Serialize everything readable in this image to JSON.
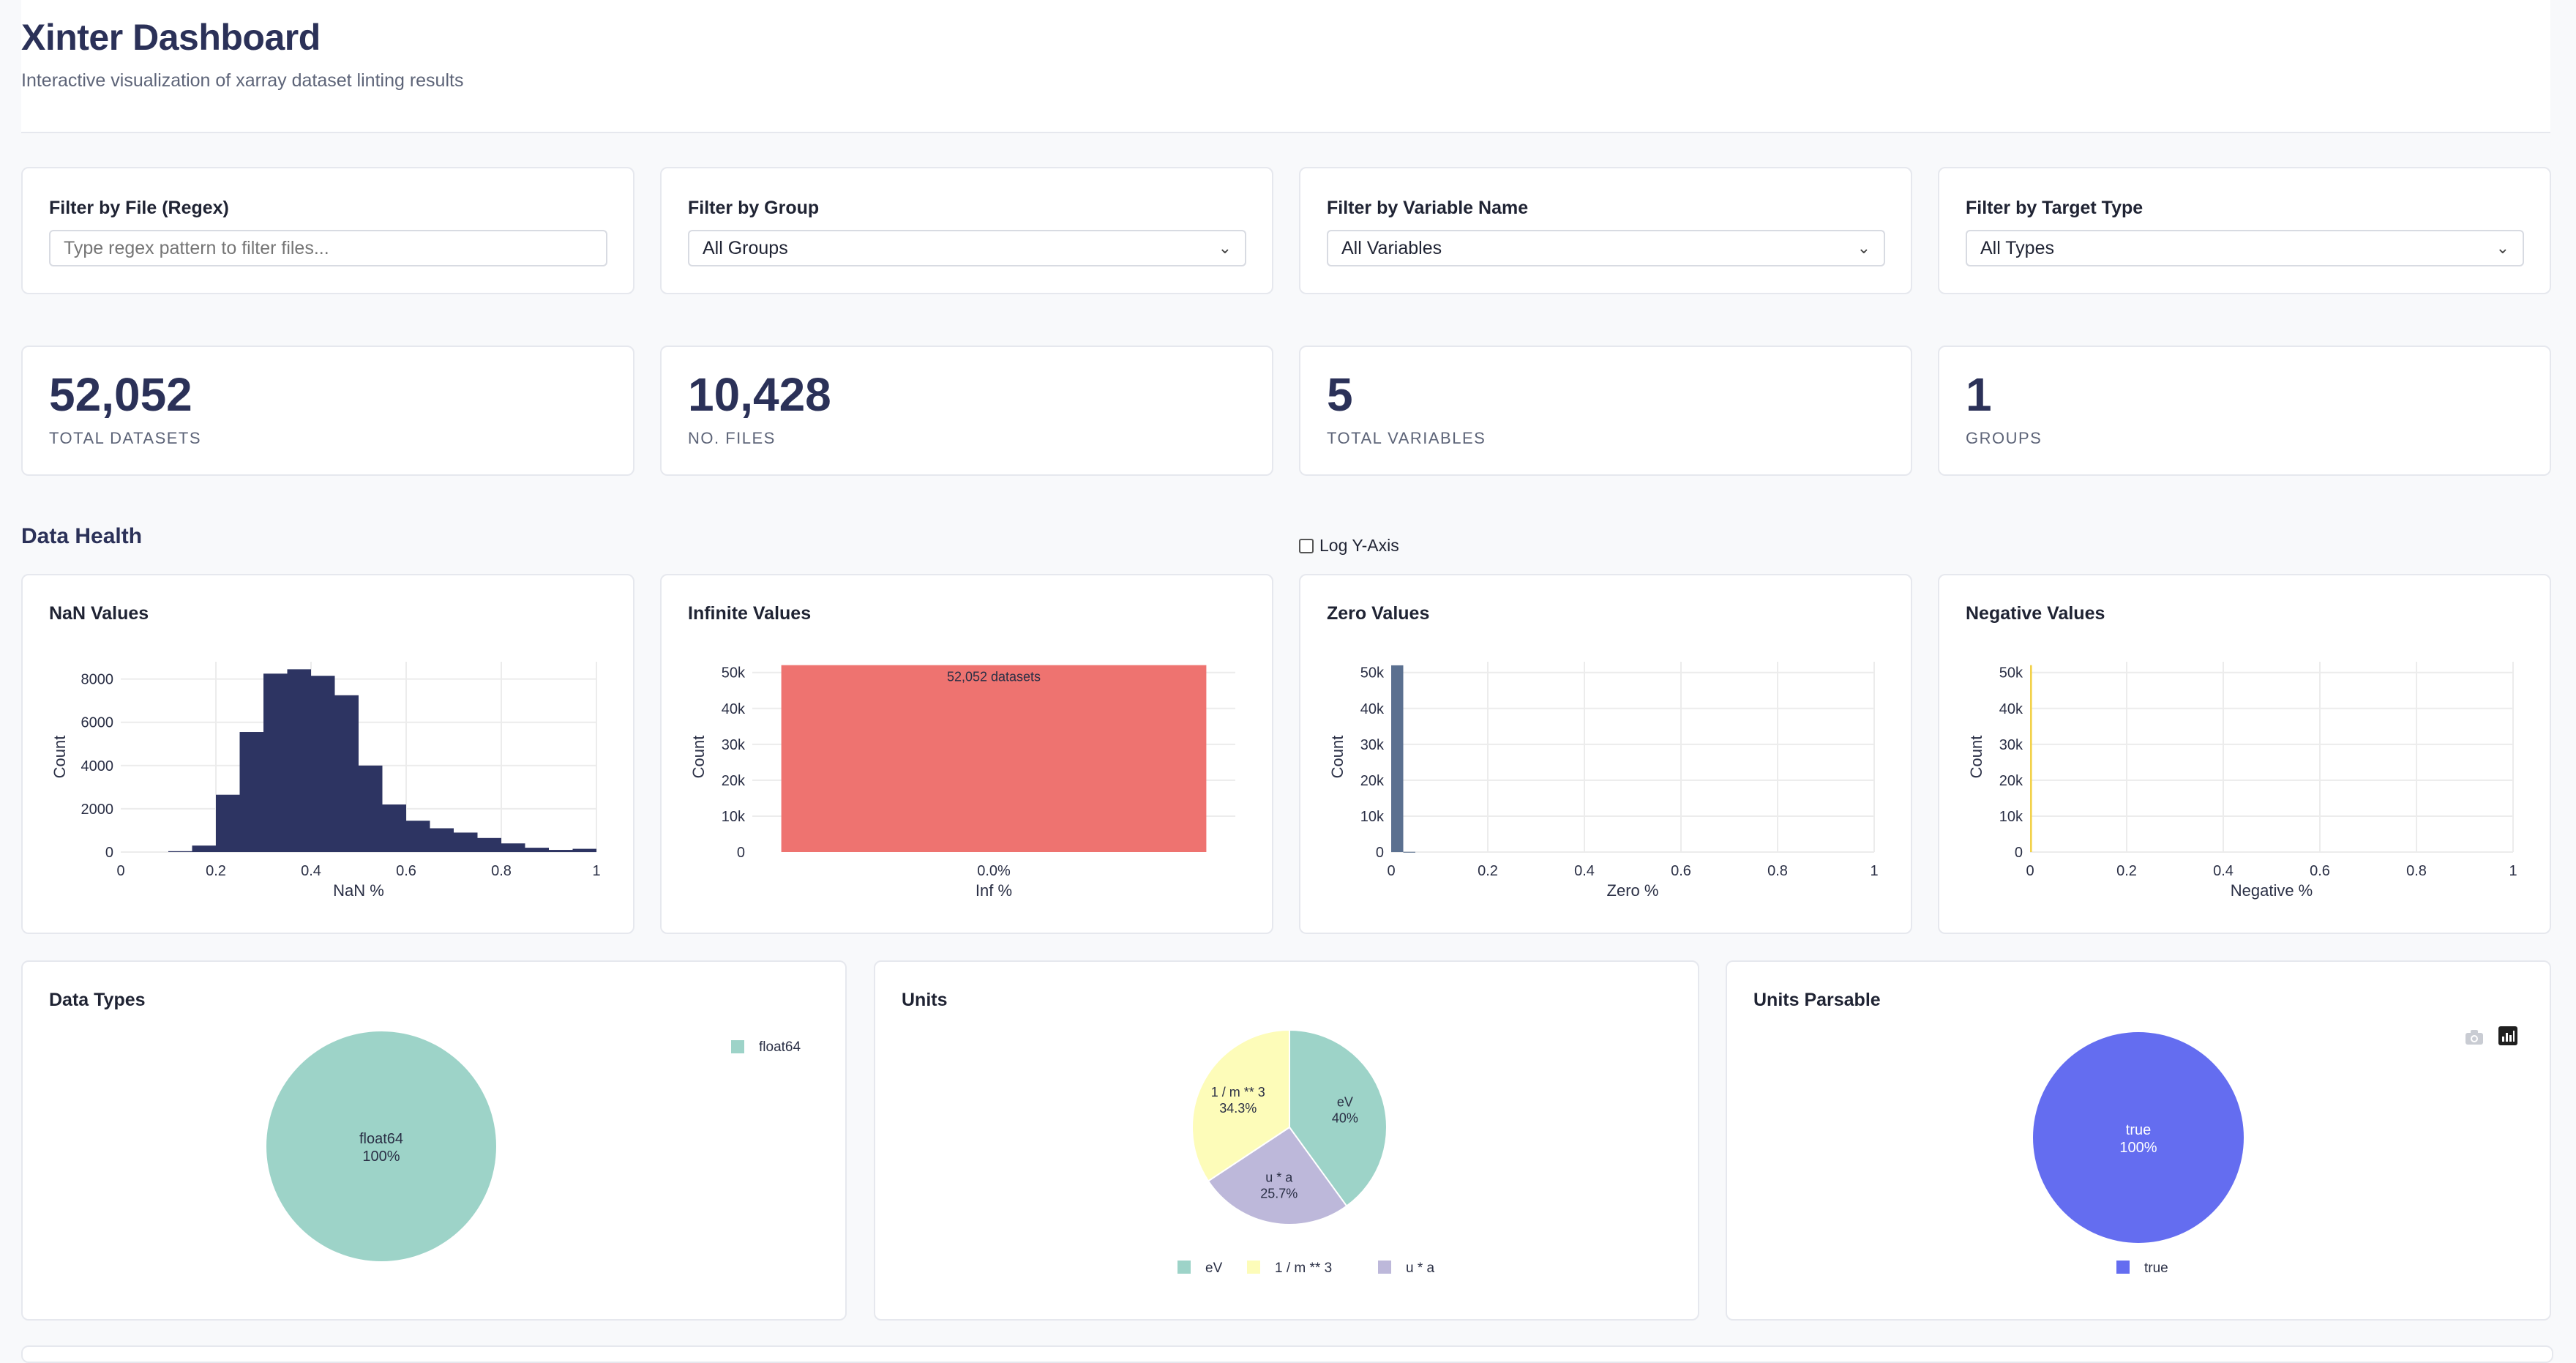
{
  "header": {
    "title": "Xinter Dashboard",
    "subtitle": "Interactive visualization of xarray dataset linting results"
  },
  "filters": {
    "file": {
      "label": "Filter by File (Regex)",
      "placeholder": "Type regex pattern to filter files..."
    },
    "group": {
      "label": "Filter by Group",
      "value": "All Groups"
    },
    "variable": {
      "label": "Filter by Variable Name",
      "value": "All Variables"
    },
    "target": {
      "label": "Filter by Target Type",
      "value": "All Types"
    }
  },
  "stats": [
    {
      "value": "52,052",
      "label": "TOTAL DATASETS"
    },
    {
      "value": "10,428",
      "label": "NO. FILES"
    },
    {
      "value": "5",
      "label": "TOTAL VARIABLES"
    },
    {
      "value": "1",
      "label": "GROUPS"
    }
  ],
  "data_health": {
    "title": "Data Health",
    "log_y_label": "Log Y-Axis"
  },
  "colors": {
    "nan_bar": "#2d3462",
    "inf_bar": "#ee7370",
    "zero_bar": "#5b7090",
    "neg_bar": "#f2d14a",
    "float64": "#9dd3c8",
    "eV": "#9dd3c8",
    "per_m3": "#fdfcb9",
    "ua": "#bdb8da",
    "true": "#646df0"
  },
  "chart_data": [
    {
      "id": "nan",
      "type": "bar",
      "title": "NaN Values",
      "xlabel": "NaN %",
      "ylabel": "Count",
      "xlim": [
        0,
        1
      ],
      "ylim": [
        0,
        8800
      ],
      "xticks": [
        "0",
        "0.2",
        "0.4",
        "0.6",
        "0.8",
        "1"
      ],
      "yticks": [
        "0",
        "2000",
        "4000",
        "6000",
        "8000"
      ],
      "bin_width": 0.05,
      "bin_starts": [
        0.1,
        0.15,
        0.2,
        0.25,
        0.3,
        0.35,
        0.4,
        0.45,
        0.5,
        0.55,
        0.6,
        0.65,
        0.7,
        0.75,
        0.8,
        0.85,
        0.9,
        0.95
      ],
      "values": [
        40,
        300,
        2650,
        5550,
        8250,
        8450,
        8150,
        7250,
        4000,
        2200,
        1450,
        1100,
        900,
        650,
        400,
        200,
        100,
        150
      ]
    },
    {
      "id": "inf",
      "type": "bar",
      "title": "Infinite Values",
      "xlabel": "Inf %",
      "ylabel": "Count",
      "ylim": [
        0,
        53000
      ],
      "categories": [
        "0.0%"
      ],
      "values": [
        52052
      ],
      "yticks": [
        "0",
        "10k",
        "20k",
        "30k",
        "40k",
        "50k"
      ],
      "data_label": "52,052 datasets"
    },
    {
      "id": "zero",
      "type": "bar",
      "title": "Zero Values",
      "xlabel": "Zero %",
      "ylabel": "Count",
      "xlim": [
        0,
        1
      ],
      "ylim": [
        0,
        53000
      ],
      "xticks": [
        "0",
        "0.2",
        "0.4",
        "0.6",
        "0.8",
        "1"
      ],
      "yticks": [
        "0",
        "10k",
        "20k",
        "30k",
        "40k",
        "50k"
      ],
      "bin_width": 0.025,
      "bin_starts": [
        0,
        0.025
      ],
      "values": [
        52000,
        52
      ]
    },
    {
      "id": "neg",
      "type": "bar",
      "title": "Negative Values",
      "xlabel": "Negative %",
      "ylabel": "Count",
      "xlim": [
        0,
        1
      ],
      "ylim": [
        0,
        53000
      ],
      "xticks": [
        "0",
        "0.2",
        "0.4",
        "0.6",
        "0.8",
        "1"
      ],
      "yticks": [
        "0",
        "10k",
        "20k",
        "30k",
        "40k",
        "50k"
      ],
      "bin_width": 0.004,
      "bin_starts": [
        0
      ],
      "values": [
        52052
      ]
    },
    {
      "id": "dtypes",
      "type": "pie",
      "title": "Data Types",
      "slices": [
        {
          "label": "float64",
          "percent": "100%",
          "value": 100,
          "color": "#9dd3c8"
        }
      ],
      "legend": [
        "float64"
      ],
      "legend_position": "top-right"
    },
    {
      "id": "units",
      "type": "pie",
      "title": "Units",
      "slices": [
        {
          "label": "eV",
          "percent": "40%",
          "value": 40,
          "color": "#9dd3c8"
        },
        {
          "label": "u * a",
          "percent": "25.7%",
          "value": 25.7,
          "color": "#bdb8da"
        },
        {
          "label": "1 / m ** 3",
          "percent": "34.3%",
          "value": 34.3,
          "color": "#fdfcb9"
        }
      ],
      "legend": [
        "eV",
        "1 / m ** 3",
        "u * a"
      ],
      "legend_position": "bottom"
    },
    {
      "id": "parsable",
      "type": "pie",
      "title": "Units Parsable",
      "slices": [
        {
          "label": "true",
          "percent": "100%",
          "value": 100,
          "color": "#646df0"
        }
      ],
      "legend": [
        "true"
      ],
      "legend_position": "bottom"
    }
  ],
  "icons": {
    "camera": "camera-icon",
    "plotly": "plotly-logo-icon"
  }
}
